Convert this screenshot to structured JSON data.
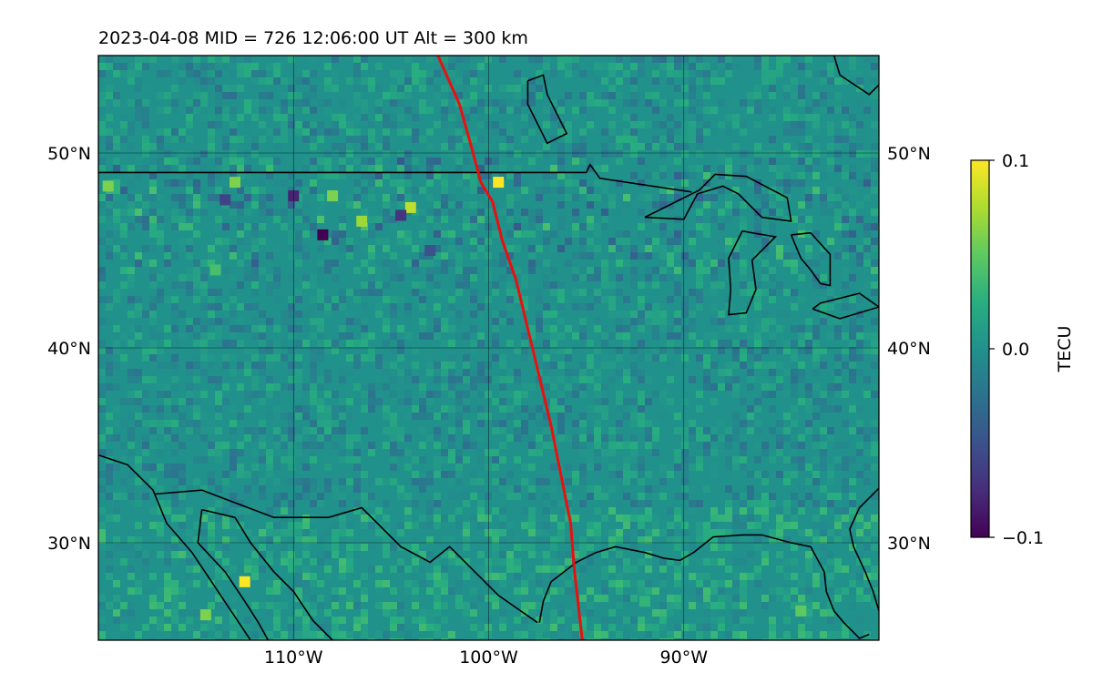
{
  "chart_data": {
    "type": "heatmap",
    "title": "2023-04-08  MID = 726    12:06:00  UT  Alt = 300 km",
    "map": {
      "lon_range": [
        -120,
        -80
      ],
      "lat_range": [
        25,
        55
      ],
      "lon_ticks": [
        {
          "value": -110,
          "label": "110°W"
        },
        {
          "value": -100,
          "label": "100°W"
        },
        {
          "value": -90,
          "label": "90°W"
        }
      ],
      "lat_ticks": [
        {
          "value": 50,
          "label": "50°N"
        },
        {
          "value": 40,
          "label": "40°N"
        },
        {
          "value": 30,
          "label": "30°N"
        }
      ],
      "gridlines": true,
      "background_value": 0.0
    },
    "colorbar": {
      "label": "TECU",
      "colormap": "viridis",
      "range": [
        -0.1,
        0.1
      ],
      "ticks": [
        {
          "value": 0.1,
          "label": "0.1"
        },
        {
          "value": 0.0,
          "label": "0.0"
        },
        {
          "value": -0.1,
          "label": "−0.1"
        }
      ],
      "position": "right"
    },
    "anomalies": [
      {
        "lon": -112.5,
        "lat": 28.0,
        "value": 0.1
      },
      {
        "lon": -114.5,
        "lat": 26.3,
        "value": 0.06
      },
      {
        "lon": -99.5,
        "lat": 48.5,
        "value": 0.1
      },
      {
        "lon": -104.0,
        "lat": 47.2,
        "value": 0.08
      },
      {
        "lon": -106.5,
        "lat": 46.5,
        "value": 0.07
      },
      {
        "lon": -108.0,
        "lat": 47.8,
        "value": 0.06
      },
      {
        "lon": -113.0,
        "lat": 48.5,
        "value": 0.06
      },
      {
        "lon": -119.5,
        "lat": 48.3,
        "value": 0.06
      },
      {
        "lon": -108.5,
        "lat": 45.8,
        "value": -0.1
      },
      {
        "lon": -110.0,
        "lat": 47.8,
        "value": -0.08
      },
      {
        "lon": -104.5,
        "lat": 46.8,
        "value": -0.07
      },
      {
        "lon": -113.5,
        "lat": 47.6,
        "value": -0.06
      },
      {
        "lon": -103.0,
        "lat": 45.0,
        "value": -0.05
      },
      {
        "lon": -84.0,
        "lat": 26.5,
        "value": 0.05
      },
      {
        "lon": -92.0,
        "lat": 27.0,
        "value": 0.03
      },
      {
        "lon": -114.0,
        "lat": 44.0,
        "value": 0.04
      }
    ],
    "series": [
      {
        "type": "line",
        "color": "#e8110f",
        "points": [
          [
            -102.6,
            55.0
          ],
          [
            -101.5,
            52.5
          ],
          [
            -100.8,
            50.0
          ],
          [
            -100.4,
            48.5
          ],
          [
            -99.8,
            47.5
          ],
          [
            -99.3,
            45.5
          ],
          [
            -98.6,
            43.5
          ],
          [
            -98.0,
            41.0
          ],
          [
            -97.4,
            38.5
          ],
          [
            -96.8,
            36.0
          ],
          [
            -96.4,
            34.0
          ],
          [
            -95.8,
            31.0
          ],
          [
            -95.6,
            28.5
          ],
          [
            -95.2,
            25.0
          ]
        ]
      }
    ],
    "coastlines": [
      {
        "name": "us-canada-border",
        "points": [
          [
            -120,
            49.0
          ],
          [
            -95.0,
            49.0
          ],
          [
            -94.8,
            49.4
          ],
          [
            -94.3,
            48.7
          ],
          [
            -89.6,
            48.0
          ]
        ]
      },
      {
        "name": "lake-superior",
        "points": [
          [
            -92.0,
            46.7
          ],
          [
            -90.0,
            46.6
          ],
          [
            -89.3,
            47.9
          ],
          [
            -88.0,
            48.3
          ],
          [
            -87.2,
            47.9
          ],
          [
            -86.0,
            46.7
          ],
          [
            -84.5,
            46.5
          ],
          [
            -84.7,
            47.7
          ],
          [
            -86.8,
            48.8
          ],
          [
            -88.4,
            48.9
          ],
          [
            -89.2,
            48.1
          ],
          [
            -92.0,
            46.7
          ]
        ]
      },
      {
        "name": "lake-michigan",
        "points": [
          [
            -87.0,
            46.0
          ],
          [
            -87.7,
            44.6
          ],
          [
            -87.6,
            43.0
          ],
          [
            -87.7,
            41.7
          ],
          [
            -86.8,
            41.8
          ],
          [
            -86.3,
            43.0
          ],
          [
            -86.5,
            44.5
          ],
          [
            -85.3,
            45.7
          ],
          [
            -86.5,
            45.9
          ],
          [
            -87.0,
            46.0
          ]
        ]
      },
      {
        "name": "lake-huron",
        "points": [
          [
            -84.5,
            45.8
          ],
          [
            -83.5,
            45.9
          ],
          [
            -82.5,
            44.8
          ],
          [
            -82.5,
            43.2
          ],
          [
            -83.0,
            43.3
          ],
          [
            -83.5,
            44.0
          ],
          [
            -84.0,
            44.6
          ],
          [
            -84.5,
            45.8
          ]
        ]
      },
      {
        "name": "lake-erie",
        "points": [
          [
            -83.4,
            42.0
          ],
          [
            -82.0,
            41.5
          ],
          [
            -80.0,
            42.1
          ],
          [
            -81.0,
            42.8
          ],
          [
            -83.0,
            42.3
          ],
          [
            -83.4,
            42.0
          ]
        ]
      },
      {
        "name": "hudson-bay-shore",
        "points": [
          [
            -80.0,
            53.5
          ],
          [
            -80.5,
            53.0
          ],
          [
            -82.0,
            54.0
          ],
          [
            -82.3,
            55.0
          ]
        ]
      },
      {
        "name": "lake-winnipeg",
        "points": [
          [
            -98.0,
            53.7
          ],
          [
            -97.2,
            54.0
          ],
          [
            -97.0,
            53.0
          ],
          [
            -96.5,
            52.0
          ],
          [
            -96.0,
            51.0
          ],
          [
            -97.0,
            50.5
          ],
          [
            -97.5,
            51.5
          ],
          [
            -98.0,
            52.5
          ],
          [
            -98.0,
            53.7
          ]
        ]
      },
      {
        "name": "gulf-coast-us",
        "points": [
          [
            -97.4,
            25.9
          ],
          [
            -97.2,
            27.0
          ],
          [
            -96.8,
            28.0
          ],
          [
            -95.5,
            29.0
          ],
          [
            -94.5,
            29.5
          ],
          [
            -93.5,
            29.8
          ],
          [
            -92.0,
            29.5
          ],
          [
            -91.0,
            29.2
          ],
          [
            -90.2,
            29.1
          ],
          [
            -89.5,
            29.5
          ],
          [
            -88.5,
            30.3
          ],
          [
            -87.0,
            30.4
          ],
          [
            -86.0,
            30.4
          ],
          [
            -84.5,
            30.0
          ],
          [
            -83.5,
            29.8
          ],
          [
            -82.8,
            28.5
          ],
          [
            -82.7,
            27.5
          ],
          [
            -82.3,
            26.5
          ],
          [
            -81.8,
            25.9
          ],
          [
            -81.0,
            25.1
          ],
          [
            -80.5,
            25.3
          ]
        ]
      },
      {
        "name": "us-mexico-border",
        "points": [
          [
            -117.1,
            32.5
          ],
          [
            -114.7,
            32.7
          ],
          [
            -111.0,
            31.3
          ],
          [
            -108.2,
            31.3
          ],
          [
            -106.5,
            31.8
          ],
          [
            -104.5,
            29.8
          ],
          [
            -103.0,
            29.0
          ],
          [
            -102.0,
            29.8
          ],
          [
            -100.5,
            28.3
          ],
          [
            -99.5,
            27.3
          ],
          [
            -97.5,
            25.9
          ]
        ]
      },
      {
        "name": "baja-west",
        "points": [
          [
            -120,
            34.5
          ],
          [
            -118.5,
            34.0
          ],
          [
            -117.2,
            32.7
          ],
          [
            -116.5,
            31.0
          ],
          [
            -115.2,
            29.5
          ],
          [
            -114.2,
            28.0
          ],
          [
            -113.2,
            26.5
          ],
          [
            -112.2,
            25.0
          ]
        ]
      },
      {
        "name": "gulf-of-california",
        "points": [
          [
            -114.7,
            31.7
          ],
          [
            -114.9,
            30.0
          ],
          [
            -113.5,
            28.5
          ],
          [
            -112.5,
            27.0
          ],
          [
            -111.8,
            25.9
          ],
          [
            -111.3,
            25.0
          ]
        ]
      },
      {
        "name": "mexico-west-coast",
        "points": [
          [
            -114.7,
            31.7
          ],
          [
            -113.0,
            31.3
          ],
          [
            -112.2,
            30.0
          ],
          [
            -111.0,
            28.5
          ],
          [
            -110.0,
            27.5
          ],
          [
            -109.0,
            26.0
          ],
          [
            -108.0,
            25.0
          ]
        ]
      },
      {
        "name": "florida-east",
        "points": [
          [
            -80.0,
            26.5
          ],
          [
            -80.3,
            27.5
          ],
          [
            -80.7,
            28.5
          ],
          [
            -81.3,
            29.8
          ],
          [
            -81.5,
            30.7
          ],
          [
            -81.0,
            31.8
          ],
          [
            -80.5,
            32.3
          ],
          [
            -80.0,
            32.8
          ]
        ]
      }
    ]
  }
}
